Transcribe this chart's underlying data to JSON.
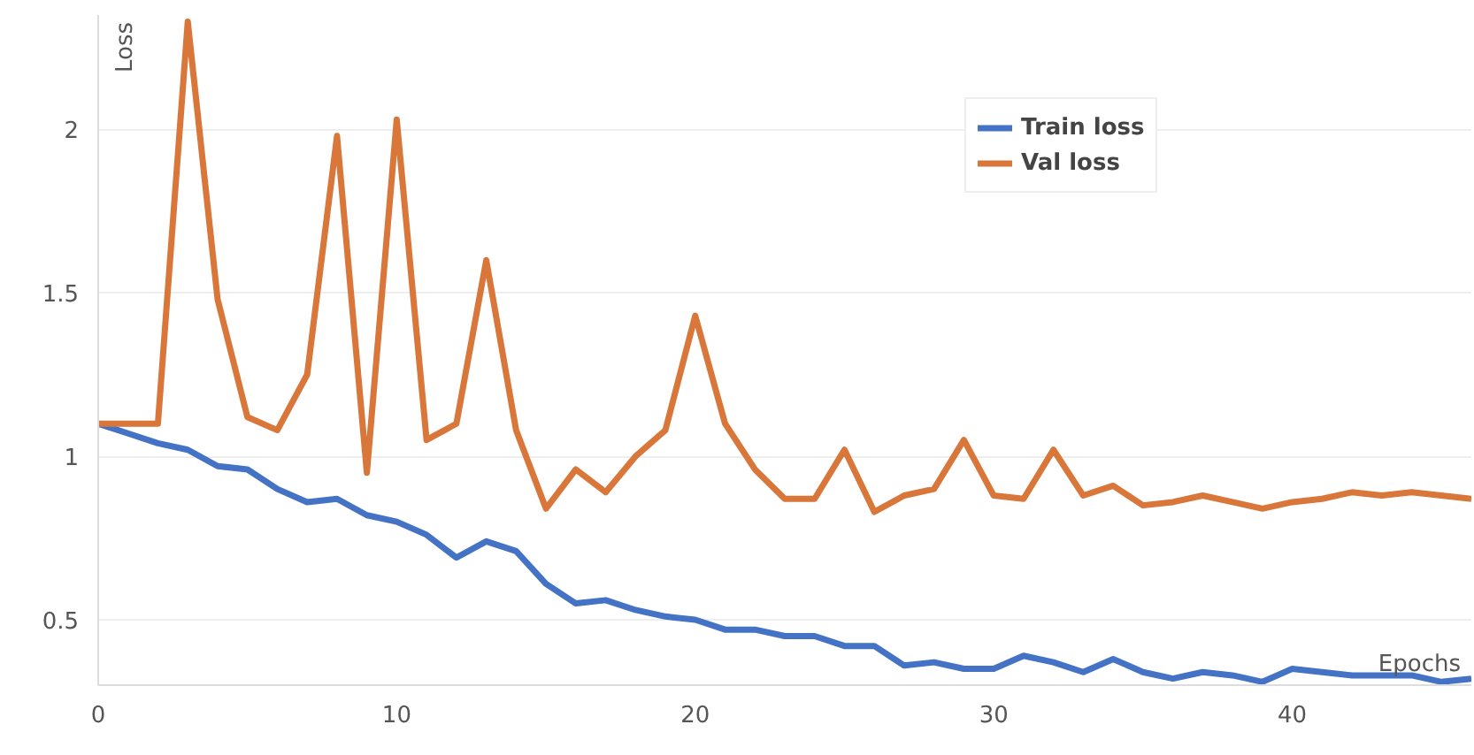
{
  "chart_data": {
    "type": "line",
    "xlabel": "Epochs",
    "ylabel": "Loss",
    "x": [
      0,
      1,
      2,
      3,
      4,
      5,
      6,
      7,
      8,
      9,
      10,
      11,
      12,
      13,
      14,
      15,
      16,
      17,
      18,
      19,
      20,
      21,
      22,
      23,
      24,
      25,
      26,
      27,
      28,
      29,
      30,
      31,
      32,
      33,
      34,
      35,
      36,
      37,
      38,
      39,
      40,
      41,
      42,
      43,
      44,
      45,
      46
    ],
    "series": [
      {
        "name": "Train loss",
        "color": "#4472c4",
        "values": [
          1.1,
          1.07,
          1.04,
          1.02,
          0.97,
          0.96,
          0.9,
          0.86,
          0.87,
          0.82,
          0.8,
          0.76,
          0.69,
          0.74,
          0.71,
          0.61,
          0.55,
          0.56,
          0.53,
          0.51,
          0.5,
          0.47,
          0.47,
          0.45,
          0.45,
          0.42,
          0.42,
          0.36,
          0.37,
          0.35,
          0.35,
          0.39,
          0.37,
          0.34,
          0.38,
          0.34,
          0.32,
          0.34,
          0.33,
          0.31,
          0.35,
          0.34,
          0.33,
          0.33,
          0.33,
          0.31,
          0.32
        ]
      },
      {
        "name": "Val loss",
        "color": "#d9763a",
        "values": [
          1.1,
          1.1,
          1.1,
          2.33,
          1.48,
          1.12,
          1.08,
          1.25,
          1.98,
          0.95,
          2.03,
          1.05,
          1.1,
          1.6,
          1.08,
          0.84,
          0.96,
          0.89,
          1.0,
          1.08,
          1.43,
          1.1,
          0.96,
          0.87,
          0.87,
          1.02,
          0.83,
          0.88,
          0.9,
          1.05,
          0.88,
          0.87,
          1.02,
          0.88,
          0.91,
          0.85,
          0.86,
          0.88,
          0.86,
          0.84,
          0.86,
          0.87,
          0.89,
          0.88,
          0.89,
          0.88,
          0.87
        ]
      }
    ],
    "xlim": [
      0,
      46
    ],
    "ylim": [
      0.3,
      2.35
    ],
    "xticks": [
      0,
      10,
      20,
      30,
      40
    ],
    "yticks": [
      0.5,
      1,
      1.5,
      2
    ],
    "grid": "y",
    "legend": "top right",
    "line_style": "solid",
    "marker": "none"
  }
}
